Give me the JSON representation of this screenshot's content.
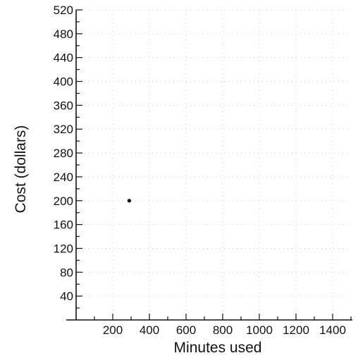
{
  "chart_data": {
    "type": "scatter",
    "title": "",
    "xlabel": "Minutes used",
    "ylabel": "Cost (dollars)",
    "xlim": [
      0,
      1500
    ],
    "ylim": [
      0,
      520
    ],
    "x_ticks": [
      200,
      400,
      600,
      800,
      1000,
      1200,
      1400
    ],
    "x_tick_labels": [
      "200",
      "400",
      "600",
      "800",
      "1000",
      "1200",
      "1400"
    ],
    "y_ticks": [
      40,
      80,
      120,
      160,
      200,
      240,
      280,
      320,
      360,
      400,
      440,
      480,
      520
    ],
    "y_tick_labels": [
      "40",
      "80",
      "120",
      "160",
      "200",
      "240",
      "280",
      "320",
      "360",
      "400",
      "440",
      "480",
      "520"
    ],
    "grid": true,
    "points": [
      {
        "x": 290,
        "y": 200
      }
    ]
  }
}
